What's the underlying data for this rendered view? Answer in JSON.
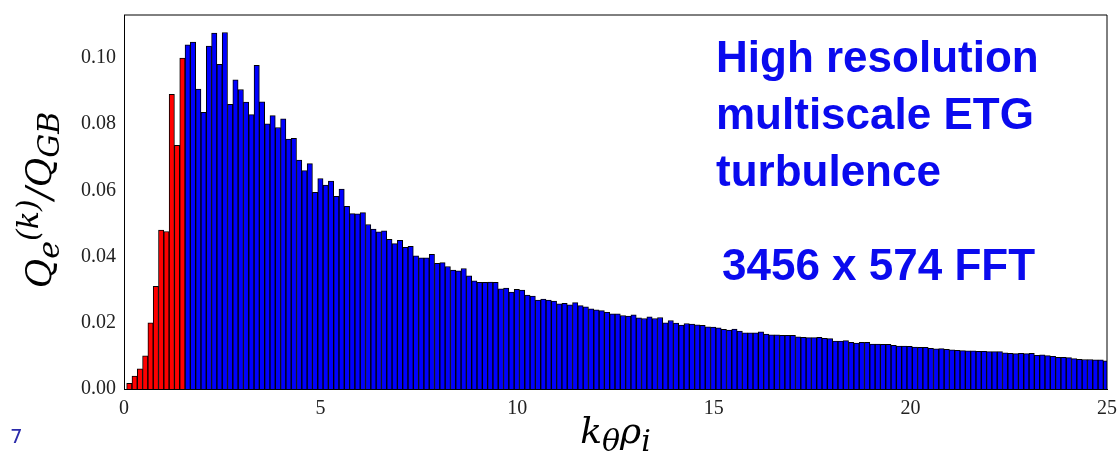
{
  "chart_data": {
    "type": "bar",
    "xlabel": "k$_{θ}$ρ$_{i}$",
    "ylabel": "Q$_{e}$$^{(k)}$/Q$_{GB}$",
    "annotations": [
      "High resolution multiscale ETG turbulence",
      "3456 x 574 FFT",
      "7"
    ],
    "xlim": [
      0,
      25
    ],
    "xticks": [
      0,
      5,
      10,
      15,
      20,
      25
    ],
    "ylim": [
      0,
      0.113
    ],
    "yticks": [
      {
        "value": 0,
        "label": "0.00"
      },
      {
        "value": 0.02,
        "label": "0.02"
      },
      {
        "value": 0.04,
        "label": "0.04"
      },
      {
        "value": 0.06,
        "label": "0.06"
      },
      {
        "value": 0.08,
        "label": "0.08"
      },
      {
        "value": 0.1,
        "label": "0.10"
      }
    ],
    "grid": false,
    "legend": false,
    "series": [
      {
        "color": "#ff0000",
        "x": [
          0.135,
          0.27,
          0.405,
          0.54,
          0.675,
          0.81,
          0.945,
          1.08,
          1.215,
          1.35,
          1.485
        ],
        "values": [
          0.0017,
          0.0039,
          0.0061,
          0.01,
          0.02,
          0.031,
          0.048,
          0.0476,
          0.089,
          0.0736,
          0.1
        ]
      },
      {
        "color": "#0000ff",
        "x": [
          1.62,
          1.755,
          1.89,
          2.025,
          2.16,
          2.295,
          2.43,
          2.565,
          2.7,
          2.835,
          2.97,
          3.105,
          3.24,
          3.375,
          3.51,
          3.645,
          3.78,
          3.915,
          4.05,
          4.185,
          4.32,
          4.455,
          4.59,
          4.725,
          4.86,
          4.995,
          5.13,
          5.265,
          5.4,
          5.535,
          5.67,
          5.805,
          5.94,
          6.075,
          6.21,
          6.345,
          6.48,
          6.615,
          6.75,
          6.885,
          7.02,
          7.155,
          7.29,
          7.425,
          7.56,
          7.695,
          7.83,
          7.965,
          8.1,
          8.235,
          8.37,
          8.505,
          8.64,
          8.775,
          8.91,
          9.045,
          9.18,
          9.315,
          9.45,
          9.585,
          9.72,
          9.855,
          9.99,
          10.125,
          10.26,
          10.395,
          10.53,
          10.665,
          10.8,
          10.935,
          11.07,
          11.205,
          11.34,
          11.475,
          11.61,
          11.745,
          11.88,
          12.015,
          12.15,
          12.285,
          12.42,
          12.555,
          12.69,
          12.825,
          12.96,
          13.095,
          13.23,
          13.365,
          13.5,
          13.635,
          13.77,
          13.905,
          14.04,
          14.175,
          14.31,
          14.445,
          14.58,
          14.715,
          14.85,
          14.985,
          15.12,
          15.255,
          15.39,
          15.525,
          15.66,
          15.795,
          15.93,
          16.065,
          16.2,
          16.335,
          16.47,
          16.605,
          16.74,
          16.875,
          17.01,
          17.145,
          17.28,
          17.415,
          17.55,
          17.685,
          17.82,
          17.955,
          18.09,
          18.225,
          18.36,
          18.495,
          18.63,
          18.765,
          18.9,
          19.035,
          19.17,
          19.305,
          19.44,
          19.575,
          19.71,
          19.845,
          19.98,
          20.115,
          20.25,
          20.385,
          20.52,
          20.655,
          20.79,
          20.925,
          21.06,
          21.195,
          21.33,
          21.465,
          21.6,
          21.735,
          21.87,
          22.005,
          22.14,
          22.275,
          22.41,
          22.545,
          22.68,
          22.815,
          22.95,
          23.085,
          23.22,
          23.355,
          23.49,
          23.625,
          23.76,
          23.895,
          24.03,
          24.165,
          24.3,
          24.435,
          24.57,
          24.705,
          24.84,
          24.975
        ],
        "values": [
          0.104,
          0.1048,
          0.0906,
          0.0836,
          0.1036,
          0.1075,
          0.0981,
          0.1077,
          0.086,
          0.0934,
          0.0905,
          0.0867,
          0.0829,
          0.0978,
          0.0868,
          0.0801,
          0.0826,
          0.079,
          0.0816,
          0.0755,
          0.0757,
          0.0692,
          0.066,
          0.0681,
          0.0594,
          0.0636,
          0.0616,
          0.0628,
          0.0582,
          0.0604,
          0.0552,
          0.053,
          0.0529,
          0.0533,
          0.0497,
          0.0483,
          0.0475,
          0.0478,
          0.0452,
          0.0439,
          0.0449,
          0.0428,
          0.0431,
          0.0402,
          0.0396,
          0.0396,
          0.0407,
          0.038,
          0.0382,
          0.037,
          0.0359,
          0.0357,
          0.0364,
          0.0342,
          0.0327,
          0.0322,
          0.0322,
          0.0323,
          0.0322,
          0.0303,
          0.0305,
          0.0293,
          0.0301,
          0.0299,
          0.0284,
          0.0281,
          0.0269,
          0.0272,
          0.0269,
          0.0266,
          0.0257,
          0.0259,
          0.0254,
          0.0261,
          0.0252,
          0.0248,
          0.0242,
          0.0239,
          0.0237,
          0.0232,
          0.0227,
          0.0227,
          0.0222,
          0.022,
          0.0224,
          0.0215,
          0.0213,
          0.0218,
          0.0213,
          0.0216,
          0.02,
          0.0207,
          0.0199,
          0.0193,
          0.0198,
          0.0196,
          0.0194,
          0.0192,
          0.0188,
          0.0187,
          0.0185,
          0.018,
          0.0178,
          0.0181,
          0.0175,
          0.017,
          0.017,
          0.017,
          0.0173,
          0.0166,
          0.0164,
          0.0164,
          0.0162,
          0.0162,
          0.0162,
          0.0158,
          0.0156,
          0.0155,
          0.0155,
          0.0156,
          0.0153,
          0.0152,
          0.0145,
          0.0145,
          0.0146,
          0.0141,
          0.0139,
          0.0141,
          0.0141,
          0.0136,
          0.0136,
          0.0135,
          0.0135,
          0.0132,
          0.013,
          0.013,
          0.0129,
          0.0127,
          0.0126,
          0.0126,
          0.0123,
          0.0121,
          0.0122,
          0.012,
          0.0118,
          0.0117,
          0.0116,
          0.0115,
          0.0115,
          0.0114,
          0.0114,
          0.0113,
          0.0113,
          0.0113,
          0.0109,
          0.0108,
          0.0107,
          0.0108,
          0.0107,
          0.0108,
          0.0102,
          0.0103,
          0.0101,
          0.0099,
          0.0096,
          0.0096,
          0.0095,
          0.0092,
          0.009,
          0.0089,
          0.0089,
          0.0088,
          0.0088,
          0.0085
        ]
      }
    ]
  }
}
